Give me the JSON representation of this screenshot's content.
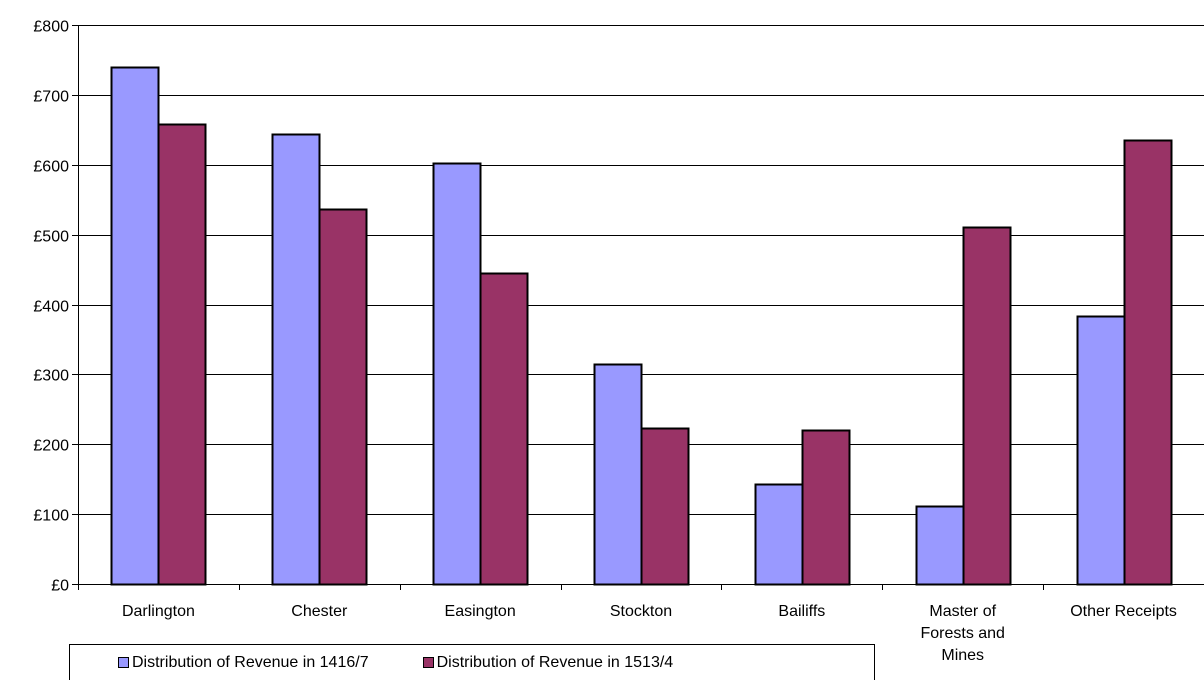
{
  "chart_data": {
    "type": "bar",
    "categories": [
      "Darlington",
      "Chester",
      "Easington",
      "Stockton",
      "Bailiffs",
      "Master of Forests and Mines",
      "Other Receipts"
    ],
    "category_lines": [
      [
        "Darlington"
      ],
      [
        "Chester"
      ],
      [
        "Easington"
      ],
      [
        "Stockton"
      ],
      [
        "Bailiffs"
      ],
      [
        "Master of",
        "Forests and",
        "Mines"
      ],
      [
        "Other Receipts"
      ]
    ],
    "series": [
      {
        "name": "Distribution of Revenue in 1416/7",
        "color": "#9999ff",
        "values": [
          740,
          644,
          603,
          315,
          143,
          112,
          384
        ]
      },
      {
        "name": "Distribution of Revenue in 1513/4",
        "color": "#993366",
        "values": [
          659,
          537,
          445,
          223,
          220,
          511,
          635
        ]
      }
    ],
    "ylim": [
      0,
      800
    ],
    "yticks": [
      0,
      100,
      200,
      300,
      400,
      500,
      600,
      700,
      800
    ],
    "ytick_labels": [
      "£0",
      "£100",
      "£200",
      "£300",
      "£400",
      "£500",
      "£600",
      "£700",
      "£800"
    ],
    "grid": true,
    "legend_position": "bottom",
    "title": "",
    "xlabel": "",
    "ylabel": ""
  }
}
